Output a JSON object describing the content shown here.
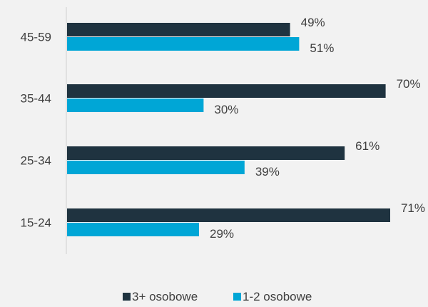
{
  "chart_data": {
    "type": "bar",
    "orientation": "horizontal",
    "categories": [
      "45-59",
      "35-44",
      "25-34",
      "15-24"
    ],
    "series": [
      {
        "name": "3+ osobowe",
        "color": "#1f3340",
        "values": [
          49,
          70,
          61,
          71
        ],
        "labels": [
          "49%",
          "70%",
          "61%",
          "71%"
        ]
      },
      {
        "name": "1-2 osobowe",
        "color": "#00a6d6",
        "values": [
          51,
          30,
          39,
          29
        ],
        "labels": [
          "51%",
          "30%",
          "39%",
          "29%"
        ]
      }
    ],
    "xlim": [
      0,
      100
    ],
    "grid": false,
    "legend_position": "bottom"
  }
}
